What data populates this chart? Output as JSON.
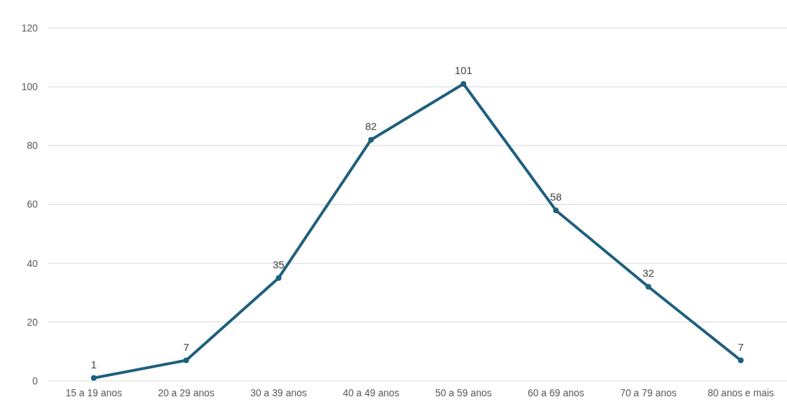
{
  "chart_data": {
    "type": "line",
    "categories": [
      "15 a 19 anos",
      "20 a 29 anos",
      "30 a 39 anos",
      "40 a 49 anos",
      "50 a 59 anos",
      "60 a 69 anos",
      "70 a 79 anos",
      "80 anos e mais"
    ],
    "series": [
      {
        "color": "#1e5f7e",
        "values": [
          1,
          7,
          35,
          82,
          101,
          58,
          32,
          7
        ]
      }
    ],
    "ylim": [
      0,
      120
    ],
    "yticks": [
      0,
      20,
      40,
      60,
      80,
      100,
      120
    ],
    "grid": "y",
    "marker": "circle",
    "line_style": "solid",
    "data_labels": true
  }
}
